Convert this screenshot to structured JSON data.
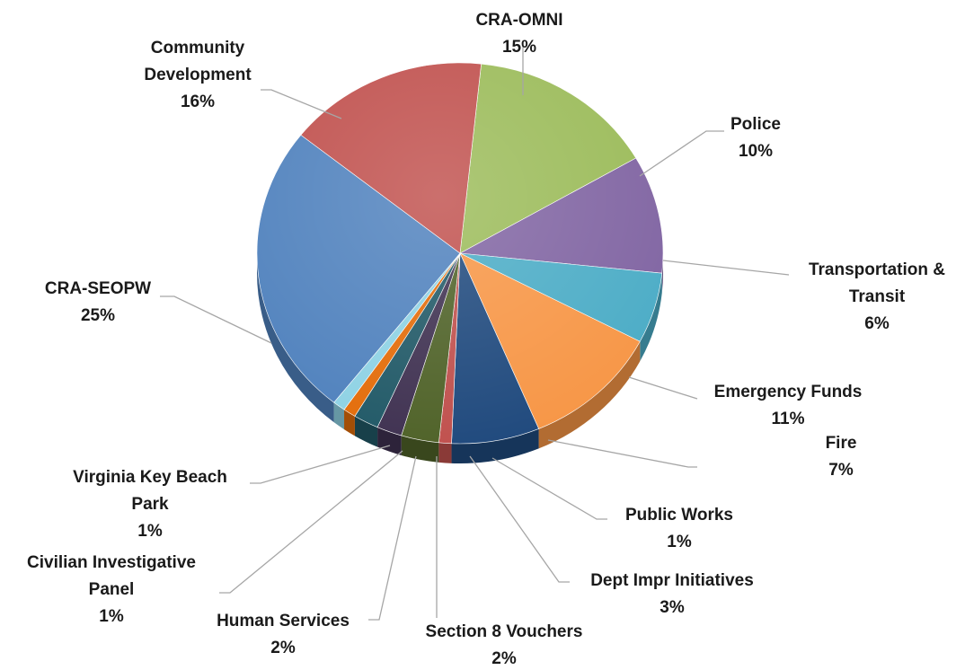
{
  "chart_data": {
    "type": "pie",
    "title": "",
    "slices": [
      {
        "label": [
          "CRA-OMNI"
        ],
        "percent_label": "15%",
        "value": 15,
        "color": "#9bbb59"
      },
      {
        "label": [
          "Police"
        ],
        "percent_label": "10%",
        "value": 10,
        "color": "#8064a2"
      },
      {
        "label": [
          "Transportation &",
          "Transit"
        ],
        "percent_label": "6%",
        "value": 6,
        "color": "#4bacc6"
      },
      {
        "label": [
          "Emergency Funds"
        ],
        "percent_label": "11%",
        "value": 11,
        "color": "#f79646"
      },
      {
        "label": [
          "Fire"
        ],
        "percent_label": "7%",
        "value": 7,
        "color": "#1f497d"
      },
      {
        "label": [
          "Public Works"
        ],
        "percent_label": "1%",
        "value": 1,
        "color": "#c0504d"
      },
      {
        "label": [
          "Dept Impr Initiatives"
        ],
        "percent_label": "3%",
        "value": 3,
        "color": "#4f6228"
      },
      {
        "label": [
          "Section 8 Vouchers"
        ],
        "percent_label": "2%",
        "value": 2,
        "color": "#3f3151"
      },
      {
        "label": [
          "Human Services"
        ],
        "percent_label": "2%",
        "value": 2,
        "color": "#215967"
      },
      {
        "label": [
          "Civilian Investigative",
          "Panel"
        ],
        "percent_label": "1%",
        "value": 1,
        "color": "#e36c09"
      },
      {
        "label": [
          "Virginia Key Beach",
          "Park"
        ],
        "percent_label": "1%",
        "value": 1,
        "color": "#8ed2e4"
      },
      {
        "label": [
          "CRA-SEOPW"
        ],
        "percent_label": "25%",
        "value": 25,
        "color": "#4f81bd"
      },
      {
        "label": [
          "Community",
          "Development"
        ],
        "percent_label": "16%",
        "value": 16,
        "color": "#c0504d"
      }
    ]
  }
}
